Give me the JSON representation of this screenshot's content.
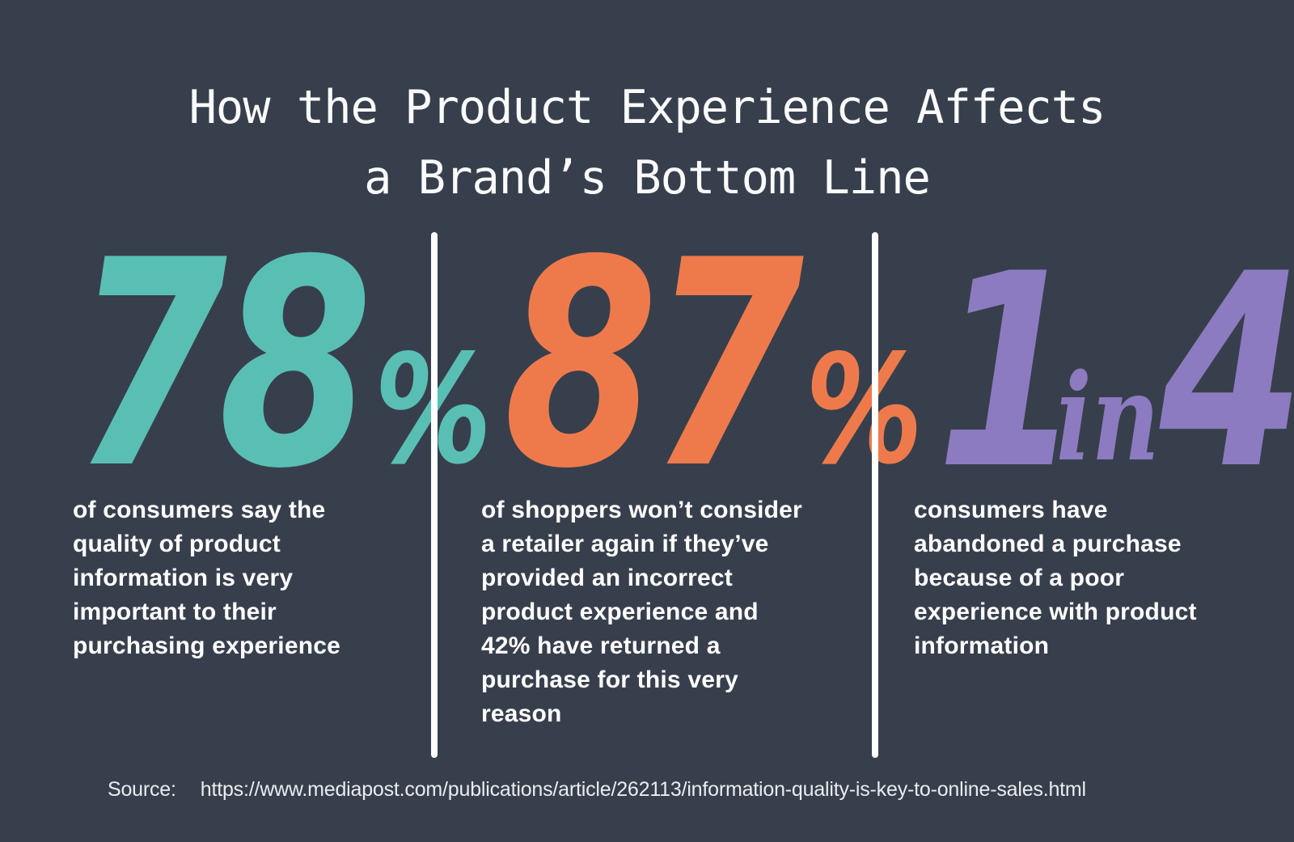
{
  "page": {
    "background_color": "#383F4C",
    "text_color": "#FFFFFF"
  },
  "title": {
    "line1": "How the Product Experience Affects",
    "line2": "a Brand’s Bottom Line"
  },
  "stats": [
    {
      "value": "78",
      "mid": "%",
      "tail": "",
      "color": "#59BFB4",
      "description": "of consumers say the quality of product information is very important to their purchasing experience"
    },
    {
      "value": "87",
      "mid": "%",
      "tail": "",
      "color": "#EE7A4C",
      "description": "of shoppers won’t consider a retailer again if they’ve provided an incorrect product experience and 42% have returned a purchase for this very reason"
    },
    {
      "value": "1",
      "mid": "in",
      "tail": "4",
      "color": "#8C7BC1",
      "description": "consumers have abandoned a purchase because of a poor experience with product information"
    }
  ],
  "source": {
    "label": "Source:",
    "url": "https://www.mediapost.com/publications/article/262113/information-quality-is-key-to-online-sales.html"
  },
  "chart_data": {
    "type": "table",
    "title": "How the Product Experience Affects a Brand’s Bottom Line",
    "stats": [
      {
        "value": "78%",
        "label": "of consumers say the quality of product information is very important to their purchasing experience",
        "color": "#59BFB4"
      },
      {
        "value": "87%",
        "label": "of shoppers won’t consider a retailer again if they’ve provided an incorrect product experience and 42% have returned a purchase for this very reason",
        "color": "#EE7A4C"
      },
      {
        "value": "1 in 4",
        "label": "consumers have abandoned a purchase because of a poor experience with product information",
        "color": "#8C7BC1"
      }
    ],
    "legend_position": "none",
    "grid": false,
    "source": "https://www.mediapost.com/publications/article/262113/information-quality-is-key-to-online-sales.html"
  }
}
